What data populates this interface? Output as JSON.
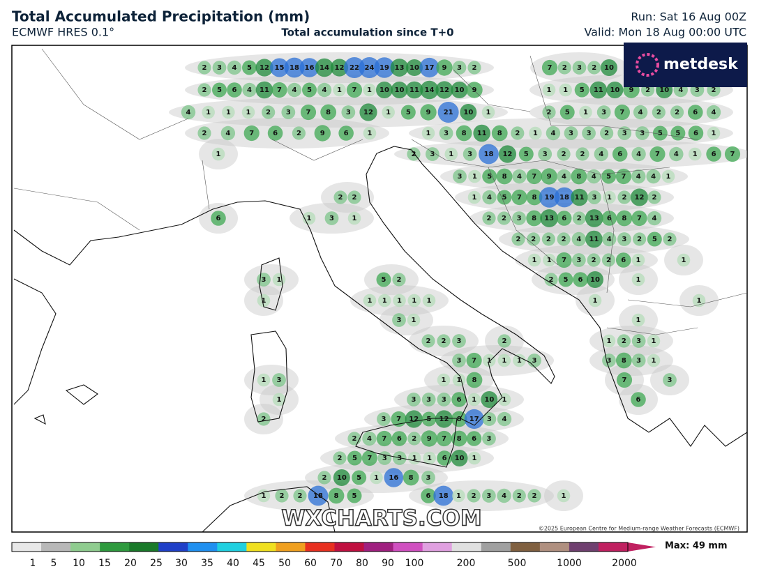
{
  "header": {
    "title": "Total Accumulated Precipitation (mm)",
    "model": "ECMWF HRES 0.1°",
    "subtitle": "Total accumulation since T+0",
    "run": "Run: Sat 16 Aug 00Z",
    "valid": "Valid: Mon 18 Aug 00:00 UTC",
    "logo": "metdesk"
  },
  "map_labels": [
    [
      2,
      3,
      4,
      5,
      12,
      15,
      18,
      16,
      14,
      12,
      22,
      24,
      19,
      13,
      10,
      17,
      9,
      3,
      2
    ],
    [
      7,
      2,
      3,
      2,
      10
    ],
    [
      2,
      5,
      6,
      4,
      11,
      7,
      4,
      5,
      4,
      1,
      7,
      1,
      10,
      10,
      11,
      14,
      12,
      10,
      9
    ],
    [
      1,
      1,
      5,
      11,
      10,
      9,
      2,
      10,
      4,
      3,
      2
    ],
    [
      4,
      1,
      1,
      1,
      2,
      3,
      7,
      8,
      3,
      12,
      1,
      5,
      9,
      21,
      10,
      1
    ],
    [
      2,
      5,
      1,
      3,
      7,
      4,
      2,
      2,
      6,
      4
    ],
    [
      2,
      4,
      7,
      6,
      2,
      9,
      6,
      1
    ],
    [
      1,
      3,
      8,
      11,
      8,
      2,
      1,
      4,
      3,
      3,
      2,
      3,
      3,
      5,
      5,
      6,
      1
    ],
    [
      1
    ],
    [
      2,
      3,
      1,
      3,
      18,
      12,
      5,
      3,
      2,
      2,
      4,
      6,
      4,
      7,
      4,
      1,
      6,
      7
    ],
    [
      3,
      1,
      5,
      8,
      4,
      7,
      9,
      4,
      8,
      4,
      5,
      7,
      4,
      4,
      1
    ],
    [
      2,
      2
    ],
    [
      1,
      4,
      5,
      7,
      8,
      19,
      18,
      11,
      3,
      1,
      2,
      12,
      2
    ],
    [
      6
    ],
    [
      1,
      3,
      1
    ],
    [
      2,
      2,
      3,
      8,
      13,
      6,
      2,
      13,
      6,
      8,
      7,
      4
    ],
    [
      2,
      2,
      2,
      2,
      4,
      11,
      4,
      3,
      2,
      5,
      2
    ],
    [
      1,
      1,
      7,
      3,
      2,
      2,
      6,
      1
    ],
    [
      1
    ],
    [
      3,
      1
    ],
    [
      5,
      2
    ],
    [
      2,
      5,
      6,
      10
    ],
    [
      1
    ],
    [
      1
    ],
    [
      1,
      1,
      1,
      1,
      1
    ],
    [
      1
    ],
    [
      1
    ],
    [
      3,
      1
    ],
    [
      1
    ],
    [
      2,
      2,
      3
    ],
    [
      2
    ],
    [
      1,
      2,
      3,
      1
    ],
    [
      3,
      7,
      1,
      1,
      1,
      3
    ],
    [
      3,
      8,
      3,
      1
    ],
    [
      1,
      3
    ],
    [
      1,
      1,
      8
    ],
    [
      7
    ],
    [
      3
    ],
    [
      1
    ],
    [
      3,
      3,
      3,
      6,
      1,
      10,
      1
    ],
    [
      6
    ],
    [
      2
    ],
    [
      3,
      7,
      12,
      5,
      12,
      8,
      17,
      3,
      4
    ],
    [
      2,
      4,
      7,
      6,
      2,
      9,
      7,
      8,
      6,
      3
    ],
    [
      2,
      5,
      7,
      3,
      3,
      1,
      1,
      6,
      10,
      1
    ],
    [
      2,
      10,
      5,
      1,
      16,
      8,
      3
    ],
    [
      1,
      2,
      2,
      18,
      8,
      5
    ],
    [
      6,
      18,
      1,
      2,
      3,
      4,
      2,
      2
    ],
    [
      1
    ]
  ],
  "watermark": "WXCHARTS.COM",
  "copyright": "©2025 European Centre for Medium-range Weather Forecasts (ECMWF)",
  "legend": {
    "ticks": [
      1,
      5,
      10,
      15,
      20,
      25,
      30,
      35,
      40,
      45,
      50,
      60,
      70,
      80,
      90,
      100,
      200,
      500,
      1000,
      2000
    ],
    "max_label": "Max: 49 mm"
  }
}
